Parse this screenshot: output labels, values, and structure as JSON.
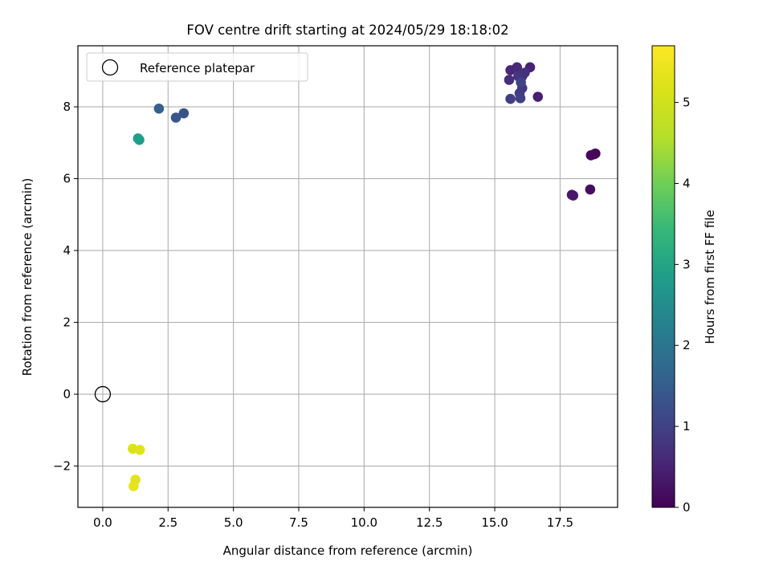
{
  "chart_data": {
    "type": "scatter",
    "title": "FOV centre drift starting at 2024/05/29 18:18:02",
    "xlabel": "Angular distance from reference (arcmin)",
    "ylabel": "Rotation from reference (arcmin)",
    "xlim": [
      -0.95,
      19.7
    ],
    "ylim": [
      -3.15,
      9.7
    ],
    "xticks": [
      0.0,
      2.5,
      5.0,
      7.5,
      10.0,
      12.5,
      15.0,
      17.5
    ],
    "xtick_labels": [
      "0.0",
      "2.5",
      "5.0",
      "7.5",
      "10.0",
      "12.5",
      "15.0",
      "17.5"
    ],
    "yticks": [
      -2,
      0,
      2,
      4,
      6,
      8
    ],
    "ytick_labels": [
      "−2",
      "0",
      "2",
      "4",
      "6",
      "8"
    ],
    "grid": true,
    "legend": {
      "placement": "top-left",
      "entries": [
        "Reference platepar"
      ]
    },
    "reference_point": {
      "x": 0.0,
      "y": 0.0,
      "label": "Reference platepar"
    },
    "colorbar": {
      "label": "Hours from first FF file",
      "range": [
        0,
        5.7
      ],
      "ticks": [
        0,
        1,
        2,
        3,
        4,
        5
      ],
      "tick_labels": [
        "0",
        "1",
        "2",
        "3",
        "4",
        "5"
      ],
      "colormap": "viridis"
    },
    "points": [
      {
        "x": 18.8,
        "y": 6.68,
        "hours": 0.0
      },
      {
        "x": 18.85,
        "y": 6.7,
        "hours": 0.05
      },
      {
        "x": 18.68,
        "y": 6.65,
        "hours": 0.1
      },
      {
        "x": 18.65,
        "y": 5.7,
        "hours": 0.2
      },
      {
        "x": 17.95,
        "y": 5.55,
        "hours": 0.3
      },
      {
        "x": 18.0,
        "y": 5.53,
        "hours": 0.35
      },
      {
        "x": 16.65,
        "y": 8.28,
        "hours": 0.45
      },
      {
        "x": 16.35,
        "y": 9.1,
        "hours": 0.5
      },
      {
        "x": 15.6,
        "y": 9.02,
        "hours": 0.55
      },
      {
        "x": 15.85,
        "y": 9.1,
        "hours": 0.6
      },
      {
        "x": 15.55,
        "y": 8.75,
        "hours": 0.65
      },
      {
        "x": 16.05,
        "y": 8.85,
        "hours": 0.7
      },
      {
        "x": 16.15,
        "y": 8.95,
        "hours": 0.75
      },
      {
        "x": 15.9,
        "y": 8.85,
        "hours": 0.8
      },
      {
        "x": 16.05,
        "y": 8.52,
        "hours": 0.85
      },
      {
        "x": 15.95,
        "y": 8.38,
        "hours": 0.9
      },
      {
        "x": 15.6,
        "y": 8.22,
        "hours": 0.95
      },
      {
        "x": 15.98,
        "y": 8.24,
        "hours": 1.0
      },
      {
        "x": 16.0,
        "y": 8.68,
        "hours": 1.05
      },
      {
        "x": 3.1,
        "y": 7.82,
        "hours": 1.3
      },
      {
        "x": 2.8,
        "y": 7.7,
        "hours": 1.4
      },
      {
        "x": 2.15,
        "y": 7.95,
        "hours": 1.55
      },
      {
        "x": 1.35,
        "y": 7.12,
        "hours": 2.8
      },
      {
        "x": 1.4,
        "y": 7.08,
        "hours": 2.85
      },
      {
        "x": 1.15,
        "y": -1.52,
        "hours": 5.2
      },
      {
        "x": 1.42,
        "y": -1.55,
        "hours": 5.25
      },
      {
        "x": 1.25,
        "y": -2.38,
        "hours": 5.3
      },
      {
        "x": 1.18,
        "y": -2.56,
        "hours": 5.35
      }
    ]
  }
}
